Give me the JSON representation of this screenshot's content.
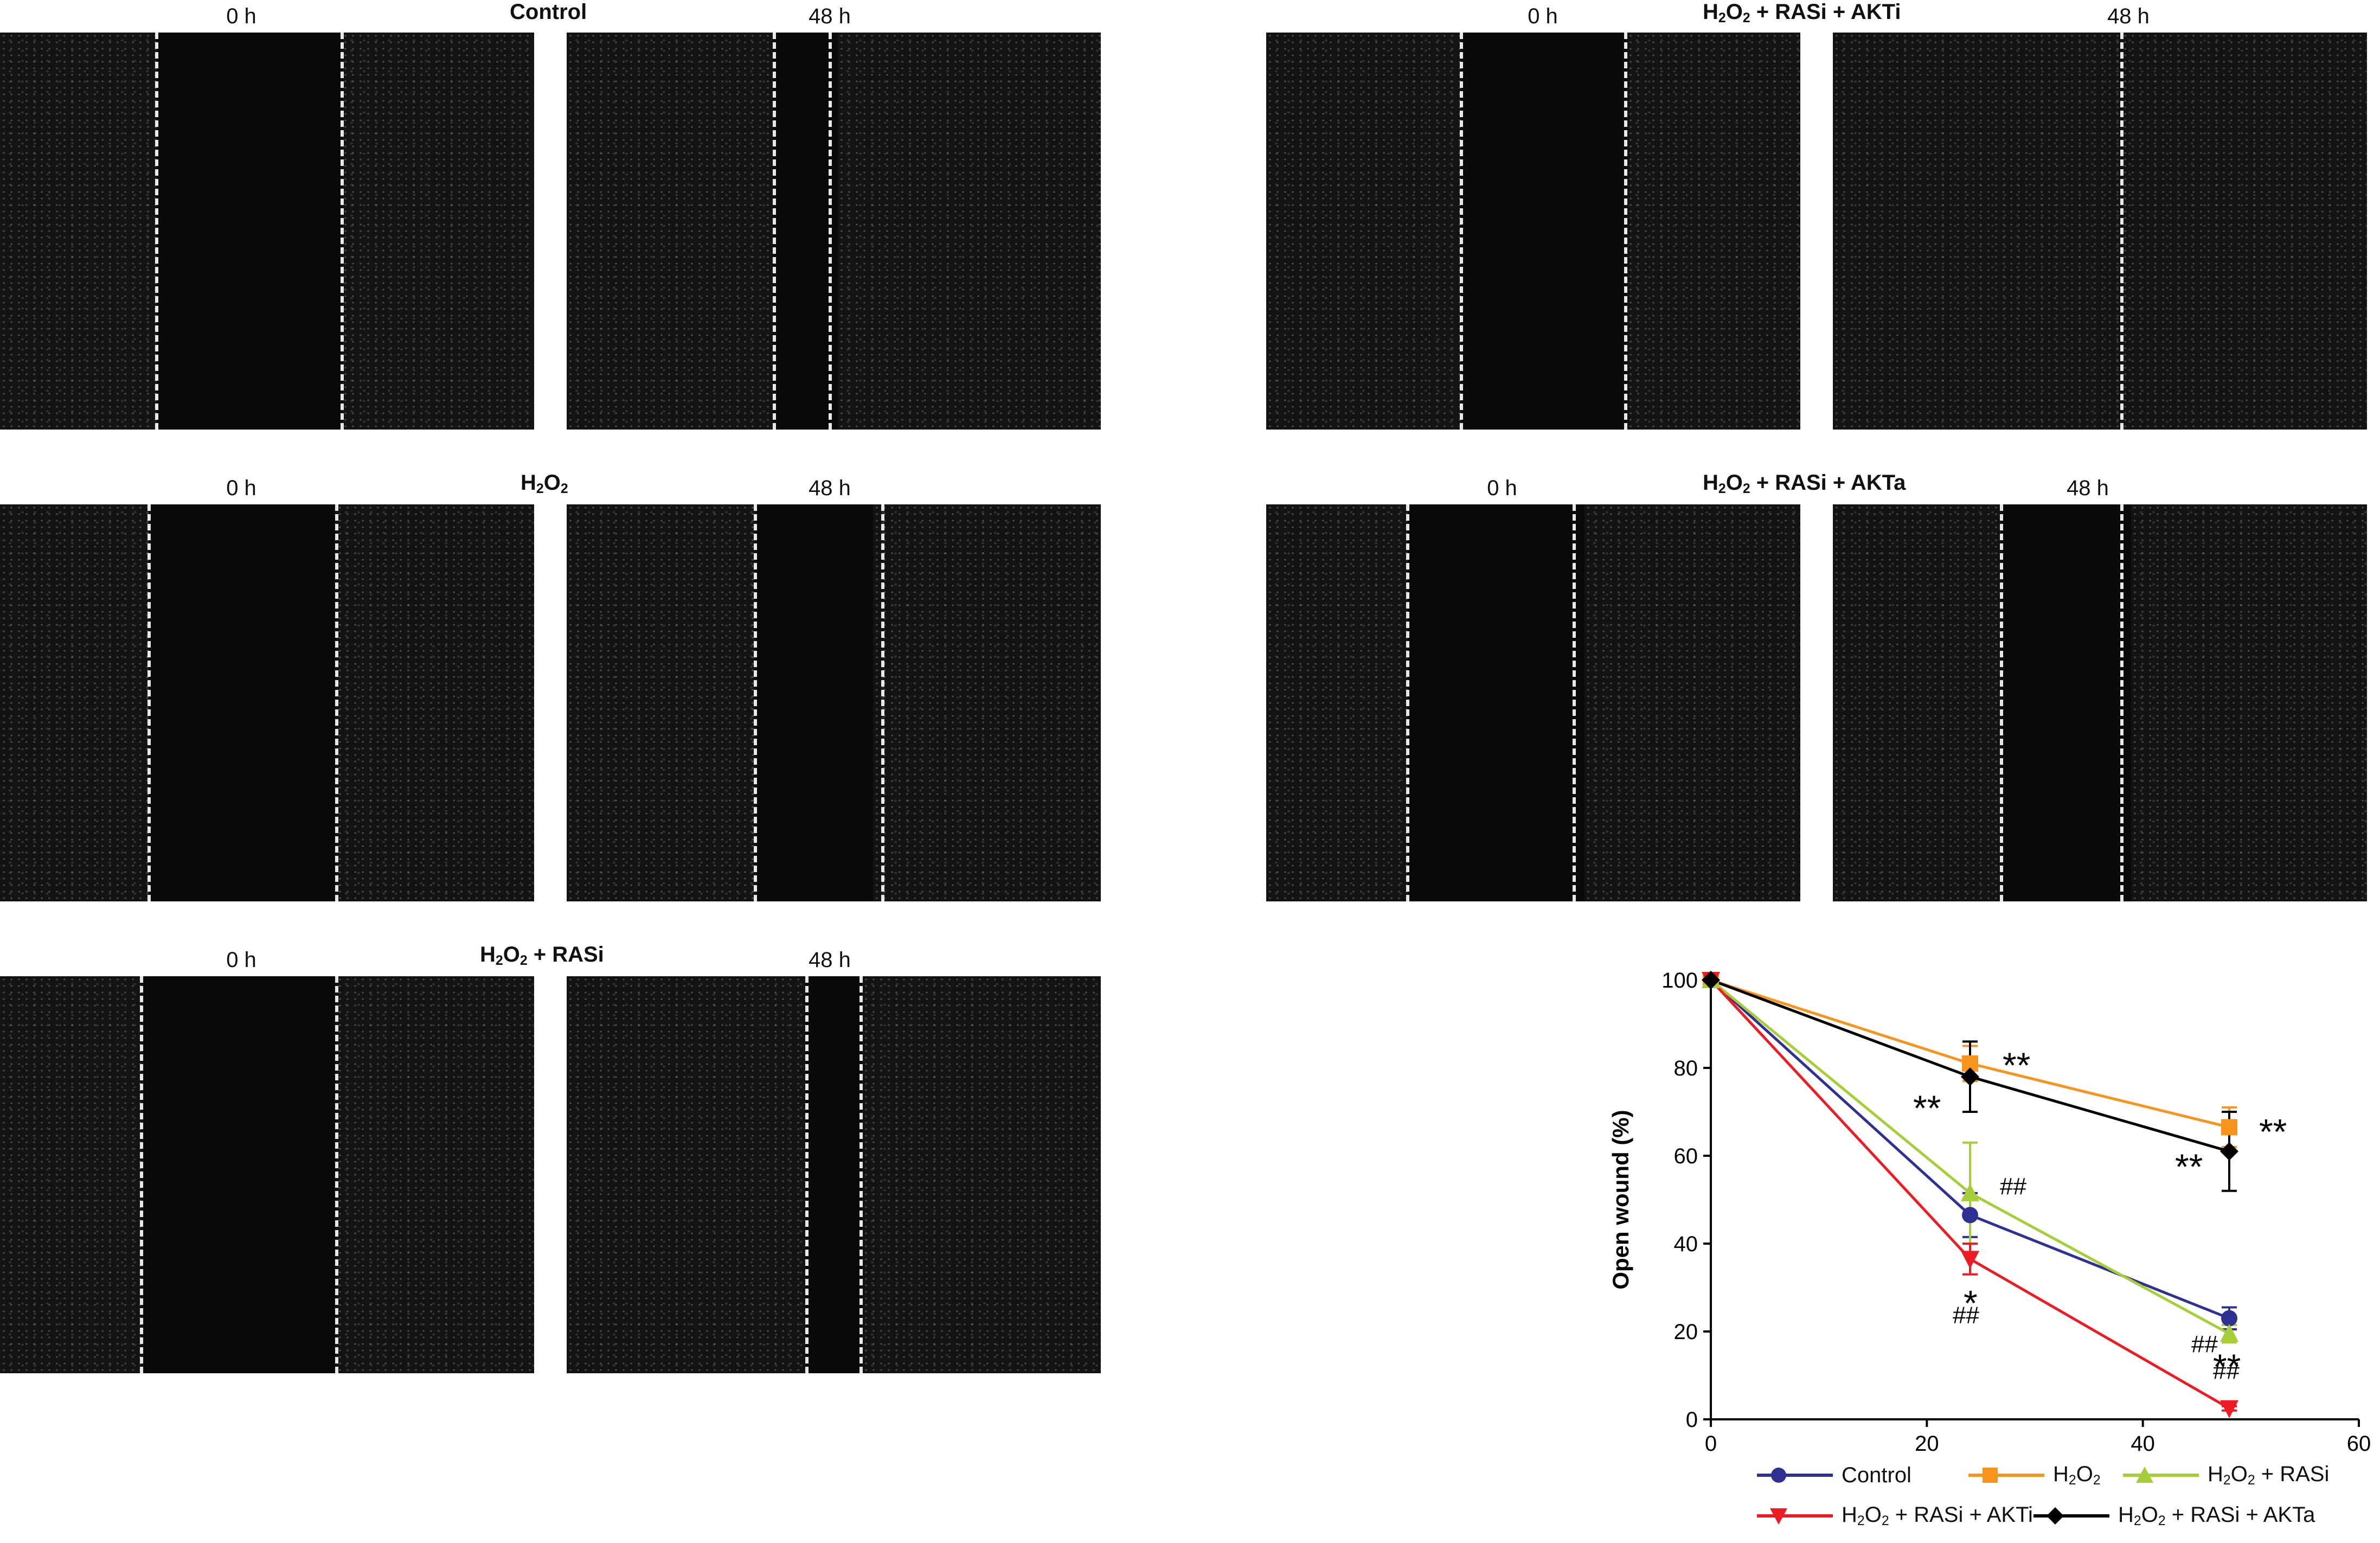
{
  "figure": {
    "groups": [
      {
        "id": "control",
        "title_html": "Control",
        "time_labels": [
          "0 h",
          "48 h"
        ]
      },
      {
        "id": "h2o2",
        "title_html": "H<sub>2</sub>O<sub>2</sub>",
        "time_labels": [
          "0 h",
          "48 h"
        ]
      },
      {
        "id": "rasi",
        "title_html": "H<sub>2</sub>O<sub>2</sub> + RASi",
        "time_labels": [
          "0 h",
          "48 h"
        ]
      },
      {
        "id": "akti",
        "title_html": "H<sub>2</sub>O<sub>2</sub> + RASi + AKTi",
        "time_labels": [
          "0 h",
          "48 h"
        ]
      },
      {
        "id": "akta",
        "title_html": "H<sub>2</sub>O<sub>2</sub> + RASi + AKTa",
        "time_labels": [
          "0 h",
          "48 h"
        ]
      }
    ]
  },
  "chart_data": {
    "type": "line",
    "ylabel": "Open wound (%)",
    "xlabel": "",
    "xlim": [
      0,
      60
    ],
    "ylim": [
      0,
      100
    ],
    "x_ticks": [
      0,
      20,
      40,
      60
    ],
    "y_ticks": [
      0,
      20,
      40,
      60,
      80,
      100
    ],
    "legend_position": "bottom",
    "series": [
      {
        "name": "Control",
        "name_html": "Control",
        "color": "#2e3192",
        "marker": "circle",
        "x": [
          0,
          24,
          48
        ],
        "y": [
          100,
          46.5,
          23
        ],
        "err": [
          0,
          5,
          2.5
        ],
        "annotations": [
          "",
          "",
          ""
        ]
      },
      {
        "name": "H2O2",
        "name_html": "H<sub>2</sub>O<sub>2</sub>",
        "color": "#f7941d",
        "marker": "square",
        "x": [
          0,
          24,
          48
        ],
        "y": [
          100,
          81,
          66.5
        ],
        "err": [
          0,
          4,
          4.5
        ],
        "annotations": [
          "",
          "**",
          "**"
        ]
      },
      {
        "name": "H2O2 + RASi",
        "name_html": "H<sub>2</sub>O<sub>2</sub> + RASi",
        "color": "#a6ce39",
        "marker": "triangle-up",
        "x": [
          0,
          24,
          48
        ],
        "y": [
          100,
          51.5,
          19.5
        ],
        "err": [
          0,
          11.5,
          2
        ],
        "annotations": [
          "",
          "##",
          "##"
        ]
      },
      {
        "name": "H2O2 + RASi + AKTi",
        "name_html": "H<sub>2</sub>O<sub>2</sub> + RASi + AKTi",
        "color": "#ed1c24",
        "marker": "triangle-down",
        "x": [
          0,
          24,
          48
        ],
        "y": [
          100,
          36.5,
          2.5
        ],
        "err": [
          0,
          3.5,
          0.5
        ],
        "annotations": [
          "",
          "*",
          "**"
        ],
        "extra_annotations": [
          "##",
          "##"
        ]
      },
      {
        "name": "H2O2 + RASi + AKTa",
        "name_html": "H<sub>2</sub>O<sub>2</sub> + RASi + AKTa",
        "color": "#000000",
        "marker": "diamond",
        "x": [
          0,
          24,
          48
        ],
        "y": [
          100,
          78,
          61
        ],
        "err": [
          0,
          8,
          9
        ],
        "annotations": [
          "",
          "**",
          "**"
        ]
      }
    ]
  }
}
